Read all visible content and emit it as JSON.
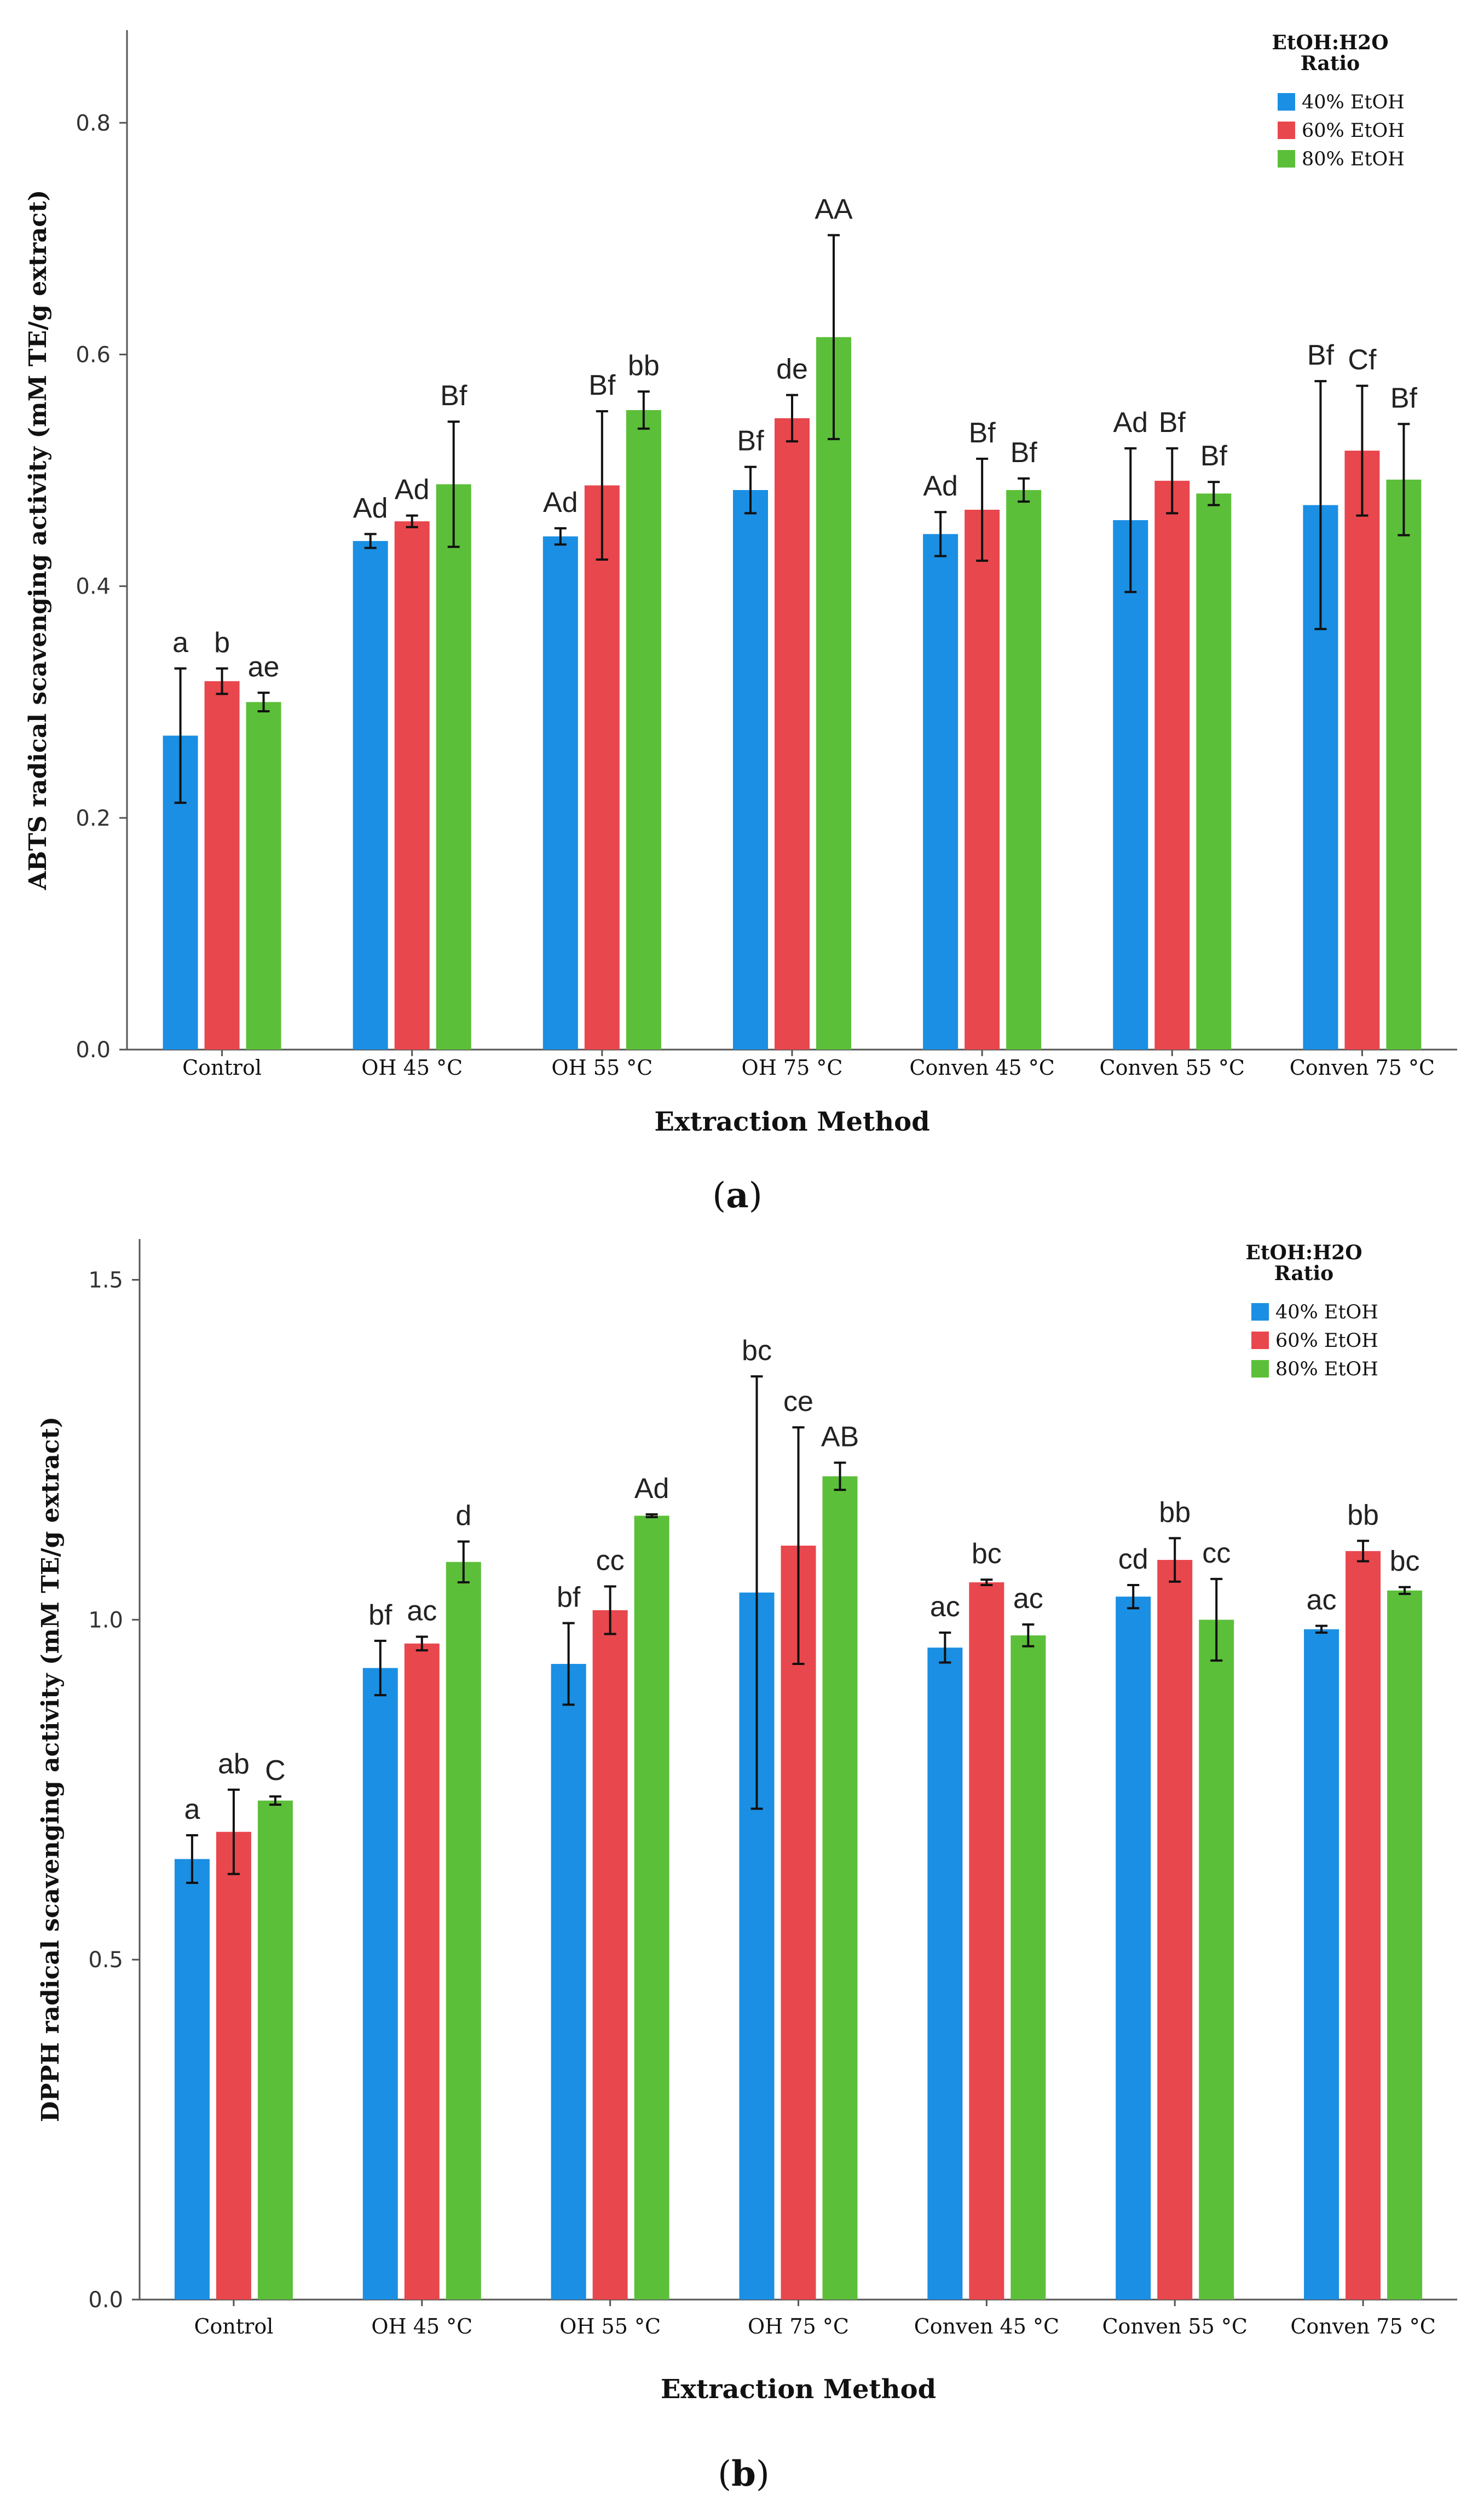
{
  "colors": {
    "series": [
      "#1a8fe3",
      "#e8474d",
      "#5cbf3a"
    ],
    "axis": "#555555",
    "error": "#111111"
  },
  "legend": {
    "title_line1": "EtOH:H2O",
    "title_line2": "Ratio"
  },
  "chart_data": [
    {
      "type": "bar",
      "panel_label": "a",
      "xlabel": "Extraction Method",
      "ylabel": "ABTS radical scavenging activity (mM TE/g extract)",
      "ylim": [
        0,
        0.88
      ],
      "yticks": [
        0.0,
        0.2,
        0.4,
        0.6,
        0.8
      ],
      "ytick_labels": [
        "0.0",
        "0.2",
        "0.4",
        "0.6",
        "0.8"
      ],
      "categories": [
        "Control",
        "OH 45 °C",
        "OH 55 °C",
        "OH 75 °C",
        "Conven 45 °C",
        "Conven 55 °C",
        "Conven 75 °C"
      ],
      "series": [
        {
          "name": "40% EtOH",
          "values": [
            0.271,
            0.439,
            0.443,
            0.483,
            0.445,
            0.457,
            0.47
          ],
          "errors": [
            0.058,
            0.006,
            0.007,
            0.02,
            0.019,
            0.062,
            0.107
          ],
          "labels": [
            "a",
            "Ad",
            "Ad",
            "Bf",
            "Ad",
            "Ad",
            "Bf"
          ]
        },
        {
          "name": "60% EtOH",
          "values": [
            0.318,
            0.456,
            0.487,
            0.545,
            0.466,
            0.491,
            0.517
          ],
          "errors": [
            0.011,
            0.005,
            0.064,
            0.02,
            0.044,
            0.028,
            0.056
          ],
          "labels": [
            "b",
            "Ad",
            "Bf",
            "de",
            "Bf",
            "Bf",
            "Cf"
          ]
        },
        {
          "name": "80% EtOH",
          "values": [
            0.3,
            0.488,
            0.552,
            0.615,
            0.483,
            0.48,
            0.492
          ],
          "errors": [
            0.008,
            0.054,
            0.016,
            0.088,
            0.01,
            0.01,
            0.048
          ],
          "labels": [
            "ae",
            "Bf",
            "bb",
            "AA",
            "Bf",
            "Bf",
            "Bf"
          ]
        }
      ]
    },
    {
      "type": "bar",
      "panel_label": "b",
      "xlabel": "Extraction Method",
      "ylabel": "DPPH radical scavenging activity (mM TE/g extract)",
      "ylim": [
        0,
        1.56
      ],
      "yticks": [
        0.0,
        0.5,
        1.0,
        1.5
      ],
      "ytick_labels": [
        "0.0",
        "0.5",
        "1.0",
        "1.5"
      ],
      "categories": [
        "Control",
        "OH 45 °C",
        "OH 55 °C",
        "OH 75 °C",
        "Conven 45 °C",
        "Conven 55 °C",
        "Conven 75 °C"
      ],
      "series": [
        {
          "name": "40% EtOH",
          "values": [
            0.648,
            0.929,
            0.935,
            1.04,
            0.959,
            1.034,
            0.986
          ],
          "errors": [
            0.035,
            0.04,
            0.06,
            0.318,
            0.022,
            0.017,
            0.005
          ],
          "labels": [
            "a",
            "bf",
            "bf",
            "bc",
            "ac",
            "cd",
            "ac"
          ]
        },
        {
          "name": "60% EtOH",
          "values": [
            0.688,
            0.965,
            1.014,
            1.109,
            1.055,
            1.088,
            1.101
          ],
          "errors": [
            0.062,
            0.01,
            0.035,
            0.174,
            0.004,
            0.032,
            0.015
          ],
          "labels": [
            "ab",
            "ac",
            "cc",
            "ce",
            "bc",
            "bb",
            "bb"
          ]
        },
        {
          "name": "80% EtOH",
          "values": [
            0.734,
            1.085,
            1.153,
            1.211,
            0.977,
            1.0,
            1.043
          ],
          "errors": [
            0.006,
            0.03,
            0.002,
            0.02,
            0.016,
            0.06,
            0.005
          ],
          "labels": [
            "C",
            "d",
            "Ad",
            "AB",
            "ac",
            "cc",
            "bc"
          ]
        }
      ]
    }
  ]
}
